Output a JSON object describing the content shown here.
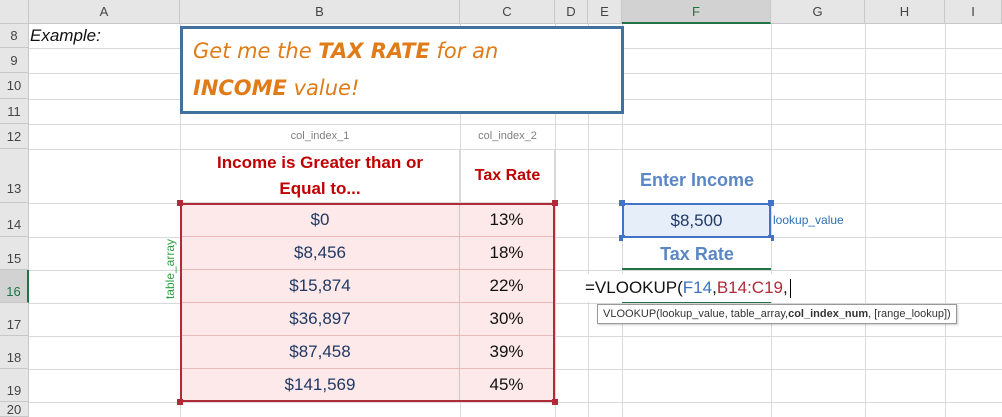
{
  "column_headers": [
    "A",
    "B",
    "C",
    "D",
    "E",
    "F",
    "G",
    "H",
    "I"
  ],
  "row_headers": [
    "8",
    "9",
    "10",
    "11",
    "12",
    "13",
    "14",
    "15",
    "16",
    "17",
    "18",
    "19",
    "20"
  ],
  "selected_column": "F",
  "selected_row": "16",
  "example_label": "Example:",
  "title": {
    "line1_pre": "Get me the ",
    "line1_bold": "TAX RATE",
    "line1_post": " for an",
    "line2_bold": "INCOME",
    "line2_post": " value!"
  },
  "col_index_1": "col_index_1",
  "col_index_2": "col_index_2",
  "table": {
    "header_income": "Income is Greater than or Equal to...",
    "header_rate": "Tax Rate",
    "rows": [
      {
        "income": "$0",
        "rate": "13%"
      },
      {
        "income": "$8,456",
        "rate": "18%"
      },
      {
        "income": "$15,874",
        "rate": "22%"
      },
      {
        "income": "$36,897",
        "rate": "30%"
      },
      {
        "income": "$87,458",
        "rate": "39%"
      },
      {
        "income": "$141,569",
        "rate": "45%"
      }
    ]
  },
  "table_array_label": "table_array",
  "enter_income_label": "Enter Income",
  "income_value": "$8,500",
  "lookup_value_label": "lookup_value",
  "tax_rate_label": "Tax Rate",
  "formula": {
    "prefix": "=VLOOKUP(",
    "ref1": "F14",
    "sep": ", ",
    "ref2": "B14:C19",
    "suffix": ","
  },
  "tooltip": {
    "fn": "VLOOKUP(",
    "args_pre": "lookup_value, table_array, ",
    "arg_bold": "col_index_num",
    "args_post": ", [range_lookup])"
  },
  "colors": {
    "accent_green": "#217346",
    "title_orange": "#e07b17",
    "header_red": "#c00000",
    "range_red": "#b02b38",
    "input_blue": "#4472c4",
    "label_blue": "#5b87c5"
  }
}
